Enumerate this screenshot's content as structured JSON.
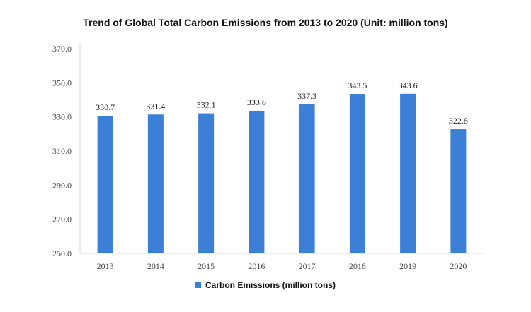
{
  "chart_data": {
    "type": "bar",
    "title": "Trend of Global Total Carbon Emissions from 2013 to 2020 (Unit: million tons)",
    "categories": [
      "2013",
      "2014",
      "2015",
      "2016",
      "2017",
      "2018",
      "2019",
      "2020"
    ],
    "series": [
      {
        "name": "Carbon Emissions (million tons)",
        "values": [
          330.7,
          331.4,
          332.1,
          333.6,
          337.3,
          343.5,
          343.6,
          322.8
        ],
        "color": "#3b7fd6"
      }
    ],
    "data_labels": [
      "330.7",
      "331.4",
      "332.1",
      "333.6",
      "337.3",
      "343.5",
      "343.6",
      "322.8"
    ],
    "xlabel": "",
    "ylabel": "",
    "ylim": [
      250,
      370
    ],
    "yticks": [
      "250.0",
      "270.0",
      "290.0",
      "310.0",
      "330.0",
      "350.0",
      "370.0"
    ],
    "grid": false,
    "legend": "bottom"
  }
}
